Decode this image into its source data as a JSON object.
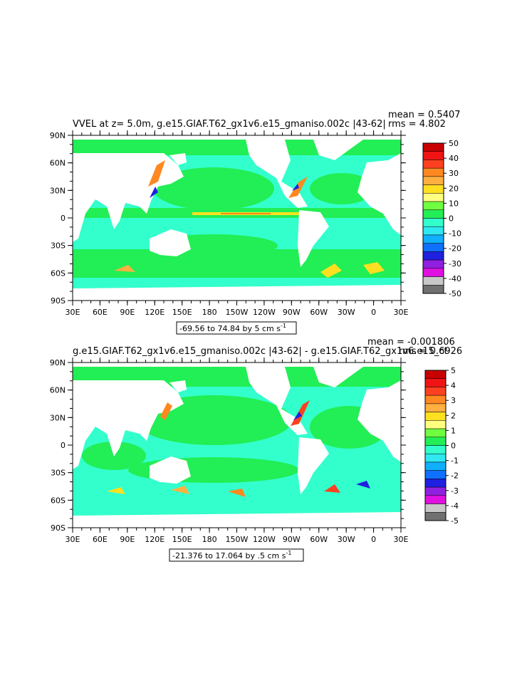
{
  "panels": [
    {
      "title": "VVEL at z=    5.0m, g.e15.GIAF.T62_gx1v6.e15_gmaniso.002c |43-62|",
      "mean": "mean = 0.5407",
      "rms": "rms = 4.802",
      "range_text": "-69.56 to 74.84 by 5 cm s",
      "range_unit_exp": "-1",
      "colorbar_labels": [
        "50",
        "40",
        "30",
        "20",
        "10",
        "0",
        "-10",
        "-20",
        "-30",
        "-40",
        "-50"
      ]
    },
    {
      "title": "g.e15.GIAF.T62_gx1v6.e15_gmaniso.002c |43-62| - g.e15.GIAF.T62_gx1v6.e15_ct",
      "mean": "mean = -0.001806",
      "rms": "rms = 0.6926",
      "range_text": "-21.376 to 17.064 by .5 cm s",
      "range_unit_exp": "-1",
      "colorbar_labels": [
        "5",
        "4",
        "3",
        "2",
        "1",
        "0",
        "-1",
        "-2",
        "-3",
        "-4",
        "-5"
      ]
    }
  ],
  "axes": {
    "lat_labels": [
      "90N",
      "60N",
      "30N",
      "0",
      "30S",
      "60S",
      "90S"
    ],
    "lon_labels": [
      "30E",
      "60E",
      "90E",
      "120E",
      "150E",
      "180",
      "150W",
      "120W",
      "90W",
      "60W",
      "30W",
      "0",
      "30E"
    ]
  },
  "colors": {
    "ocean_main": "#33ffcc",
    "ocean_alt": "#22ee55",
    "land": "#ffffff",
    "scale": [
      "#c80000",
      "#f01414",
      "#ff4020",
      "#ff8820",
      "#ffb040",
      "#ffe020",
      "#ffff80",
      "#70ff40",
      "#22ee55",
      "#33ffcc",
      "#30e8f0",
      "#10b0ff",
      "#1070ff",
      "#2020e0",
      "#9020e0",
      "#e010e0",
      "#c8c8c8",
      "#707070"
    ]
  }
}
